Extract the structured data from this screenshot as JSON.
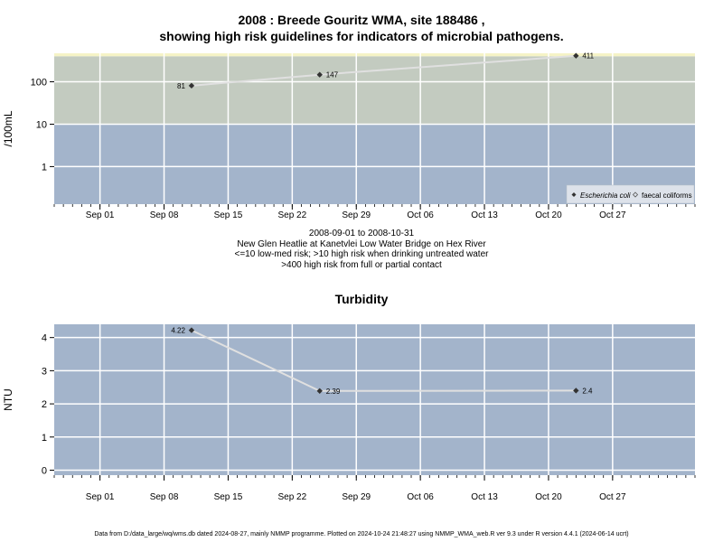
{
  "header": {
    "title_line1": "2008 : Breede Gouritz WMA, site 188486 ,",
    "title_line2": "showing high risk guidelines for indicators of microbial pathogens."
  },
  "caption": {
    "line1": "2008-09-01 to 2008-10-31",
    "line2": "New Glen Heatlie at Kanetvlei Low Water Bridge on Hex River",
    "line3": "<=10 low-med risk; >10 high risk when drinking untreated water",
    "line4": ">400 high risk from full or partial contact"
  },
  "footer": {
    "text": "Data from D:/data_large/wq/wms.db dated 2024-08-27, mainly NMMP programme. Plotted on 2024-10-24 21:48:27 using NMMP_WMA_web.R ver 9.3 under R version 4.4.1 (2024-06-14 ucrt)"
  },
  "colors": {
    "band_low": "#a3b4cb",
    "band_mid": "#c3cbc0",
    "band_high": "#f5f3c6",
    "grid": "#ffffff",
    "line": "#e0e0e0",
    "point": "#333333"
  },
  "chart_data": [
    {
      "type": "line",
      "title": "",
      "xlabel": "",
      "ylabel": "/100mL",
      "y_scale": "log10",
      "ylim": [
        0.13,
        470
      ],
      "xlim": [
        "2008-08-27",
        "2008-11-05"
      ],
      "x_ticks": [
        "Sep 01",
        "Sep 08",
        "Sep 15",
        "Sep 22",
        "Sep 29",
        "Oct 06",
        "Oct 13",
        "Oct 20",
        "Oct 27"
      ],
      "x_tick_dates": [
        "2008-09-01",
        "2008-09-08",
        "2008-09-15",
        "2008-09-22",
        "2008-09-29",
        "2008-10-06",
        "2008-10-13",
        "2008-10-20",
        "2008-10-27"
      ],
      "y_ticks": [
        1,
        10,
        100
      ],
      "y_tick_labels": [
        "1",
        "10",
        "100"
      ],
      "bands": [
        {
          "from": 0.13,
          "to": 10,
          "color": "#a3b4cb"
        },
        {
          "from": 10,
          "to": 400,
          "color": "#c3cbc0"
        },
        {
          "from": 400,
          "to": 470,
          "color": "#f5f3c6"
        }
      ],
      "grid": true,
      "legend_position": "bottom-right",
      "legend": [
        "Escherichia coli",
        "faecal coliforms"
      ],
      "series": [
        {
          "name": "Escherichia coli",
          "x": [
            "2008-09-11",
            "2008-09-25",
            "2008-10-23"
          ],
          "y": [
            81,
            147,
            411
          ],
          "labels": [
            "81",
            "147",
            "411"
          ],
          "label_side": [
            "left",
            "right",
            "right"
          ]
        }
      ]
    },
    {
      "type": "line",
      "title": "Turbidity",
      "xlabel": "",
      "ylabel": "NTU",
      "y_scale": "linear",
      "ylim": [
        -0.15,
        4.4
      ],
      "xlim": [
        "2008-08-27",
        "2008-11-05"
      ],
      "x_ticks": [
        "Sep 01",
        "Sep 08",
        "Sep 15",
        "Sep 22",
        "Sep 29",
        "Oct 06",
        "Oct 13",
        "Oct 20",
        "Oct 27"
      ],
      "x_tick_dates": [
        "2008-09-01",
        "2008-09-08",
        "2008-09-15",
        "2008-09-22",
        "2008-09-29",
        "2008-10-06",
        "2008-10-13",
        "2008-10-20",
        "2008-10-27"
      ],
      "y_ticks": [
        0,
        1,
        2,
        3,
        4
      ],
      "y_tick_labels": [
        "0",
        "1",
        "2",
        "3",
        "4"
      ],
      "bands": [
        {
          "from": -0.15,
          "to": 4.4,
          "color": "#a3b4cb"
        }
      ],
      "grid": true,
      "series": [
        {
          "x": [
            "2008-09-11",
            "2008-09-25",
            "2008-10-23"
          ],
          "y": [
            4.22,
            2.39,
            2.4
          ],
          "labels": [
            "4.22",
            "2.39",
            "2.4"
          ],
          "label_side": [
            "left",
            "right",
            "right"
          ]
        }
      ]
    }
  ]
}
